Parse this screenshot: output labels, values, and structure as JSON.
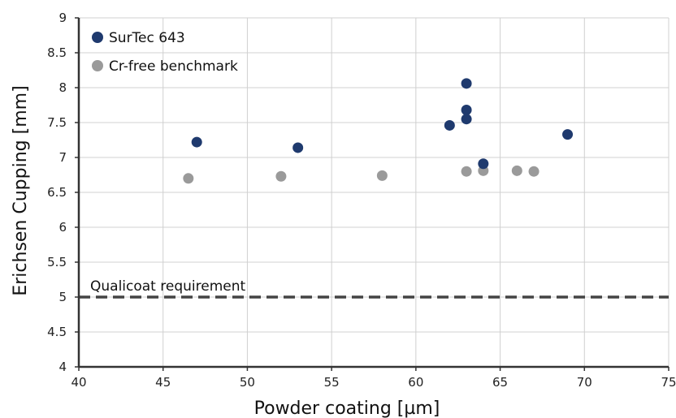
{
  "chart_data": {
    "type": "scatter",
    "xlabel": "Powder coating [µm]",
    "ylabel": "Erichsen Cupping [mm]",
    "xlim": [
      40,
      75
    ],
    "ylim": [
      4,
      9
    ],
    "x_ticks": [
      40,
      45,
      50,
      55,
      60,
      65,
      70,
      75
    ],
    "y_ticks": [
      "4",
      "4.5",
      "5",
      "5.5",
      "6",
      "6.5",
      "7",
      "7.5",
      "8",
      "8.5",
      "9"
    ],
    "grid": true,
    "legend_position": "top-left",
    "series": [
      {
        "name": "SurTec 643",
        "color": "#1f3a6e",
        "points": [
          {
            "x": 47,
            "y": 7.22
          },
          {
            "x": 53,
            "y": 7.14
          },
          {
            "x": 62,
            "y": 7.46
          },
          {
            "x": 63,
            "y": 8.06
          },
          {
            "x": 63,
            "y": 7.68
          },
          {
            "x": 63,
            "y": 7.55
          },
          {
            "x": 64,
            "y": 6.91
          },
          {
            "x": 69,
            "y": 7.33
          }
        ]
      },
      {
        "name": "Cr-free benchmark",
        "color": "#9a9a9a",
        "points": [
          {
            "x": 46.5,
            "y": 6.7
          },
          {
            "x": 52,
            "y": 6.73
          },
          {
            "x": 58,
            "y": 6.74
          },
          {
            "x": 63,
            "y": 6.8
          },
          {
            "x": 64,
            "y": 6.81
          },
          {
            "x": 66,
            "y": 6.81
          },
          {
            "x": 67,
            "y": 6.8
          }
        ]
      }
    ],
    "reference_line": {
      "y": 5,
      "label": "Qualicoat requirement",
      "style": "dashed",
      "color": "#444444"
    }
  }
}
